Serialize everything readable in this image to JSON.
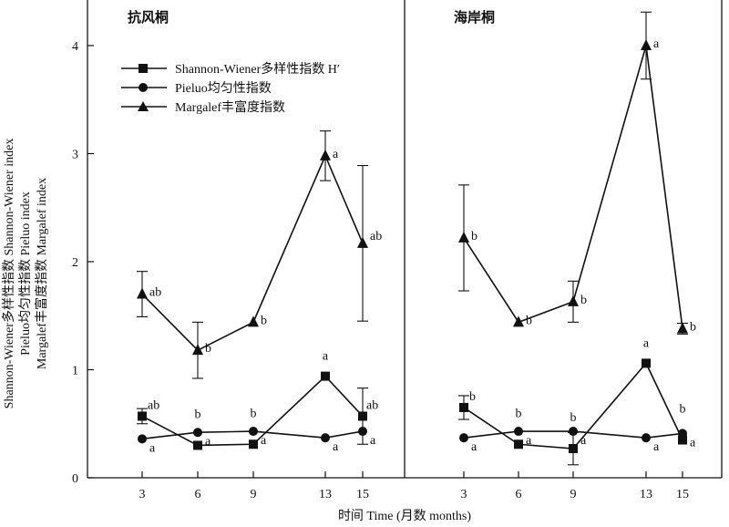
{
  "chart_data": {
    "type": "line",
    "ylabel_lines": [
      "Shannon-Wiener多样性指数 Shannon-Wiener index",
      "Pieluo均匀性指数 Pieluo index",
      "Margalef丰富度指数 Margalef index"
    ],
    "xlabel": "时间 Time (月数 months)",
    "categories": [
      "3",
      "6",
      "9",
      "13",
      "15"
    ],
    "ylim": [
      0,
      4.4
    ],
    "yticks": [
      0,
      1,
      2,
      3,
      4
    ],
    "legend": {
      "placement": "top-left",
      "entries": [
        {
          "label": "Shannon-Wiener多样性指数 H′",
          "marker": "square"
        },
        {
          "label": "Pieluo均匀性指数",
          "marker": "circle"
        },
        {
          "label": "Margalef丰富度指数",
          "marker": "triangle"
        }
      ]
    },
    "panels": [
      {
        "title": "抗风桐",
        "series": [
          {
            "marker": "triangle",
            "values": [
              1.7,
              1.18,
              1.44,
              2.98,
              2.17
            ],
            "err": [
              0.21,
              0.26,
              0,
              0.23,
              0.72
            ],
            "labels": [
              "ab",
              "b",
              "b",
              "a",
              "ab"
            ]
          },
          {
            "marker": "square",
            "values": [
              0.57,
              0.3,
              0.31,
              0.94,
              0.57
            ],
            "err": [
              0.07,
              0,
              0,
              0,
              0.26
            ],
            "labels": [
              "ab",
              "b",
              "b",
              "a",
              "ab"
            ]
          },
          {
            "marker": "circle",
            "values": [
              0.36,
              0.42,
              0.43,
              0.37,
              0.43
            ],
            "err": [
              0,
              0,
              0,
              0,
              0
            ],
            "labels": [
              "a",
              "a",
              "a",
              "a",
              "a"
            ]
          }
        ]
      },
      {
        "title": "海岸桐",
        "series": [
          {
            "marker": "triangle",
            "values": [
              2.22,
              1.44,
              1.63,
              4.0,
              1.38
            ],
            "err": [
              0.49,
              0,
              0.19,
              0.31,
              0.05
            ],
            "labels": [
              "b",
              "b",
              "b",
              "a",
              "b"
            ]
          },
          {
            "marker": "square",
            "values": [
              0.65,
              0.31,
              0.27,
              1.06,
              0.35
            ],
            "err": [
              0.11,
              0,
              0.15,
              0,
              0
            ],
            "labels": [
              "b",
              "b",
              "b",
              "a",
              "b"
            ]
          },
          {
            "marker": "circle",
            "values": [
              0.37,
              0.43,
              0.43,
              0.37,
              0.41
            ],
            "err": [
              0,
              0,
              0,
              0,
              0
            ],
            "labels": [
              "a",
              "a",
              "a",
              "a",
              "a"
            ]
          }
        ]
      }
    ]
  }
}
